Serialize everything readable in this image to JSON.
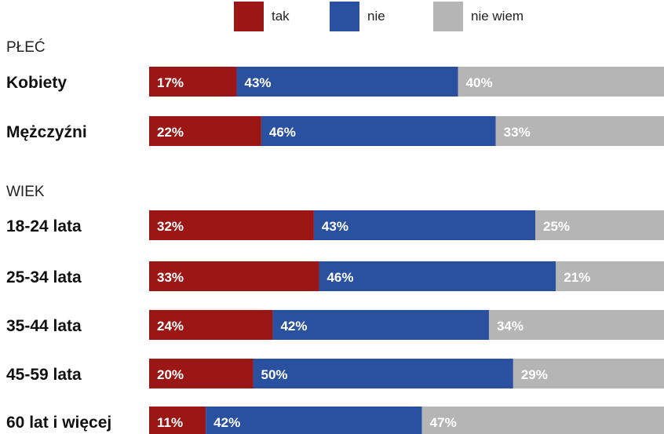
{
  "chart_data": {
    "type": "bar",
    "orientation": "horizontal",
    "stacked": true,
    "normalized_percent": true,
    "legend": [
      {
        "name": "tak",
        "color": "#9b1716"
      },
      {
        "name": "nie",
        "color": "#2a50a0"
      },
      {
        "name": "nie wiem",
        "color": "#b5b5b5"
      }
    ],
    "legend_position": "top",
    "groups": [
      {
        "title": "PŁEĆ",
        "rows": [
          {
            "label": "Kobiety",
            "values": [
              17,
              43,
              40
            ]
          },
          {
            "label": "Mężczyźni",
            "values": [
              22,
              46,
              33
            ]
          }
        ]
      },
      {
        "title": "WIEK",
        "rows": [
          {
            "label": "18-24 lata",
            "values": [
              32,
              43,
              25
            ]
          },
          {
            "label": "25-34 lata",
            "values": [
              33,
              46,
              21
            ]
          },
          {
            "label": "35-44 lata",
            "values": [
              24,
              42,
              34
            ]
          },
          {
            "label": "45-59 lata",
            "values": [
              20,
              50,
              29
            ]
          },
          {
            "label": "60 lat i więcej",
            "values": [
              11,
              42,
              47
            ]
          }
        ]
      }
    ],
    "value_suffix": "%",
    "grid": false
  }
}
